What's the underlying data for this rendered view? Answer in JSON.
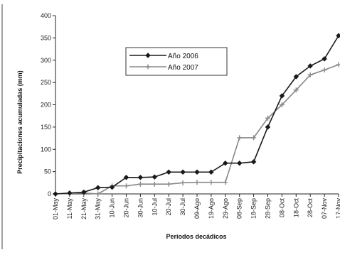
{
  "chart_data": {
    "type": "line",
    "title": "",
    "xlabel": "Períodos decádicos",
    "ylabel": "Precipitaciones acumuladas (mm)",
    "ylim": [
      0,
      400
    ],
    "yticks": [
      0,
      50,
      100,
      150,
      200,
      250,
      300,
      350,
      400
    ],
    "grid": false,
    "legend_position": "center-top",
    "categories": [
      "01-May",
      "11-May",
      "21-May",
      "31-May",
      "10-Jun",
      "20-Jun",
      "30-Jun",
      "10-Jul",
      "20-Jul",
      "30-Jul",
      "09-Ago",
      "19-Ago",
      "29-Ago",
      "08-Sep",
      "18-Sep",
      "28-Sep",
      "08-Oct",
      "18-Oct",
      "28-Oct",
      "07-Nov",
      "17-Nov"
    ],
    "series": [
      {
        "name": "Año 2006",
        "color": "#1a1a1a",
        "marker": "diamond",
        "values": [
          0,
          2,
          4,
          14,
          15,
          37,
          37,
          38,
          49,
          49,
          49,
          49,
          69,
          69,
          72,
          150,
          220,
          263,
          287,
          303,
          355
        ]
      },
      {
        "name": "Año 2007",
        "color": "#888888",
        "marker": "plus",
        "values": [
          0,
          1,
          2,
          0,
          18,
          18,
          22,
          22,
          22,
          25,
          26,
          26,
          26,
          126,
          126,
          170,
          200,
          233,
          267,
          278,
          290
        ]
      }
    ]
  }
}
